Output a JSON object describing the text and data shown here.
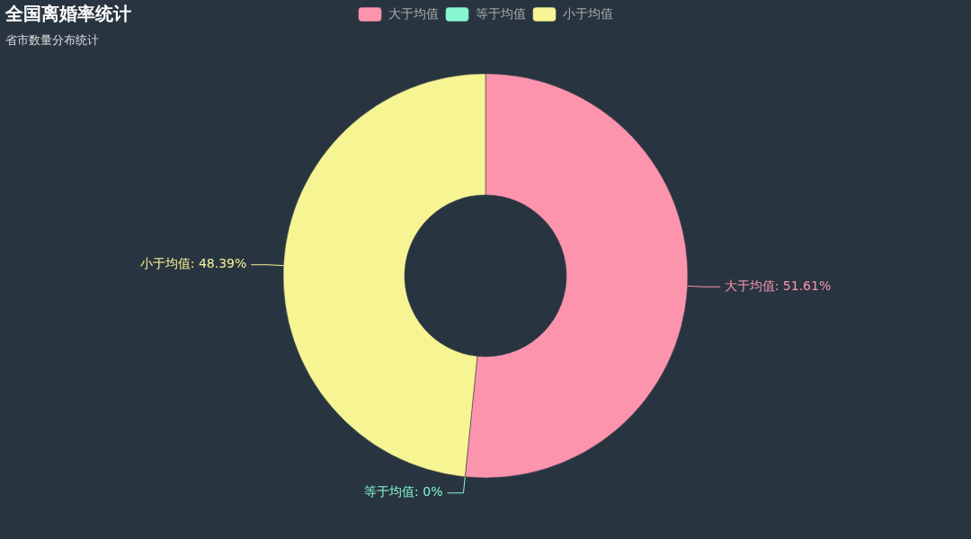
{
  "chart_data": {
    "type": "donut",
    "title": "全国离婚率统计",
    "subtitle": "省市数量分布统计",
    "categories": [
      "大于均值",
      "等于均值",
      "小于均值"
    ],
    "values": [
      51.61,
      0,
      48.39
    ],
    "value_labels": [
      "大于均值: 51.61%",
      "等于均值: 0%",
      "小于均值: 48.39%"
    ],
    "colors": [
      "#fd94ad",
      "#87f7cf",
      "#f7f494"
    ],
    "legend": "top"
  }
}
